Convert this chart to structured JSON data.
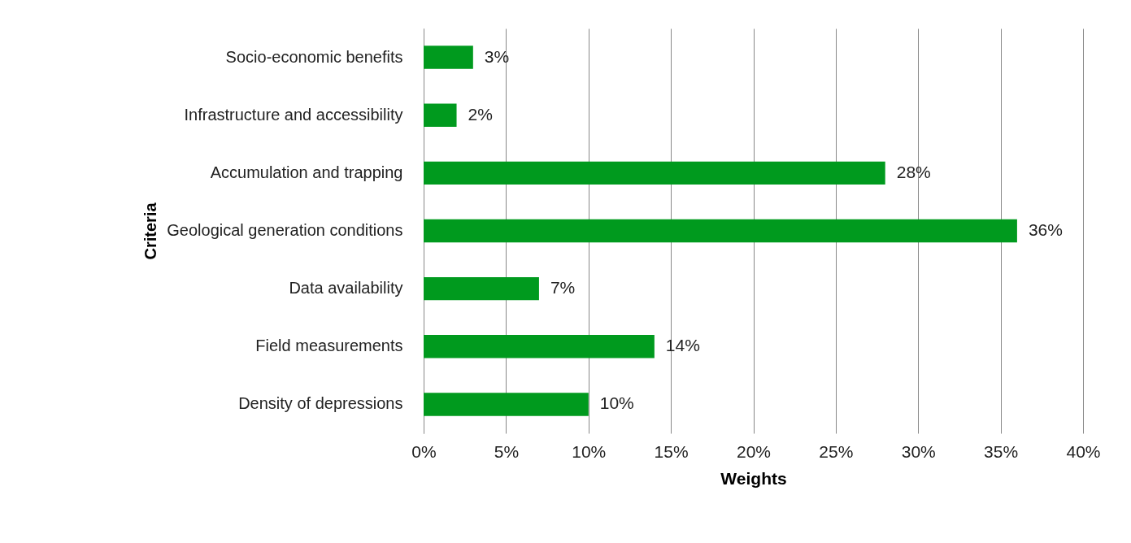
{
  "chart_data": {
    "type": "bar",
    "orientation": "horizontal",
    "xlabel": "Weights",
    "ylabel": "Criteria",
    "categories": [
      "Socio-economic benefits",
      "Infrastructure and accessibility",
      "Accumulation and trapping",
      "Geological generation conditions",
      "Data availability",
      "Field measurements",
      "Density of depressions"
    ],
    "values": [
      3,
      2,
      28,
      36,
      7,
      14,
      10
    ],
    "value_labels": [
      "3%",
      "2%",
      "28%",
      "36%",
      "7%",
      "14%",
      "10%"
    ],
    "color": "#009a1e",
    "xlim": [
      0,
      40
    ],
    "xticks": [
      {
        "value": 0,
        "label": "0%"
      },
      {
        "value": 5,
        "label": "5%"
      },
      {
        "value": 10,
        "label": "10%"
      },
      {
        "value": 15,
        "label": "15%"
      },
      {
        "value": 20,
        "label": "20%"
      },
      {
        "value": 25,
        "label": "25%"
      },
      {
        "value": 30,
        "label": "30%"
      },
      {
        "value": 35,
        "label": "35%"
      },
      {
        "value": 40,
        "label": "40%"
      }
    ],
    "grid": "x"
  }
}
